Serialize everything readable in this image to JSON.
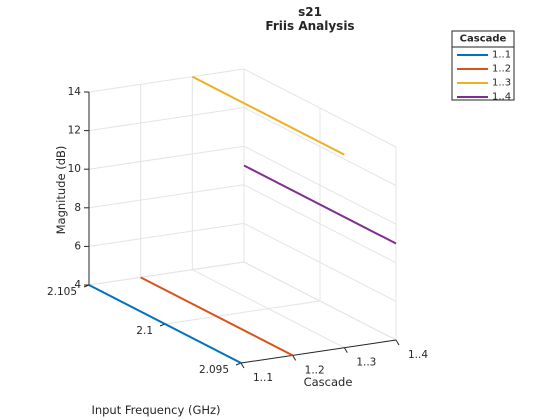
{
  "chart_data": {
    "type": "line3d",
    "title": "s21",
    "subtitle": "Friis Analysis",
    "xlabel": "Cascade",
    "ylabel": "Input Frequency (GHz)",
    "zlabel": "Magnitude (dB)",
    "x_tick_labels": [
      "1..1",
      "1..2",
      "1..3",
      "1..4"
    ],
    "y_ticks": [
      2.095,
      2.1,
      2.105
    ],
    "z_ticks": [
      4,
      6,
      8,
      10,
      12,
      14
    ],
    "xlim": [
      1,
      4
    ],
    "ylim": [
      2.095,
      2.105
    ],
    "zlim": [
      4,
      14
    ],
    "grid": true,
    "legend": {
      "title": "Cascade",
      "placement": "top-right"
    },
    "series": [
      {
        "name": "1..1",
        "color": "#0072BD",
        "x": [
          1,
          1
        ],
        "y": [
          2.095,
          2.105
        ],
        "z": [
          4,
          4
        ]
      },
      {
        "name": "1..2",
        "color": "#D95319",
        "x": [
          2,
          2
        ],
        "y": [
          2.095,
          2.105
        ],
        "z": [
          4,
          4
        ]
      },
      {
        "name": "1..3",
        "color": "#EDB120",
        "x": [
          3,
          3
        ],
        "y": [
          2.095,
          2.105
        ],
        "z": [
          14,
          14
        ]
      },
      {
        "name": "1..4",
        "color": "#7E2F8E",
        "x": [
          4,
          4
        ],
        "y": [
          2.095,
          2.105
        ],
        "z": [
          9,
          9
        ]
      }
    ]
  }
}
